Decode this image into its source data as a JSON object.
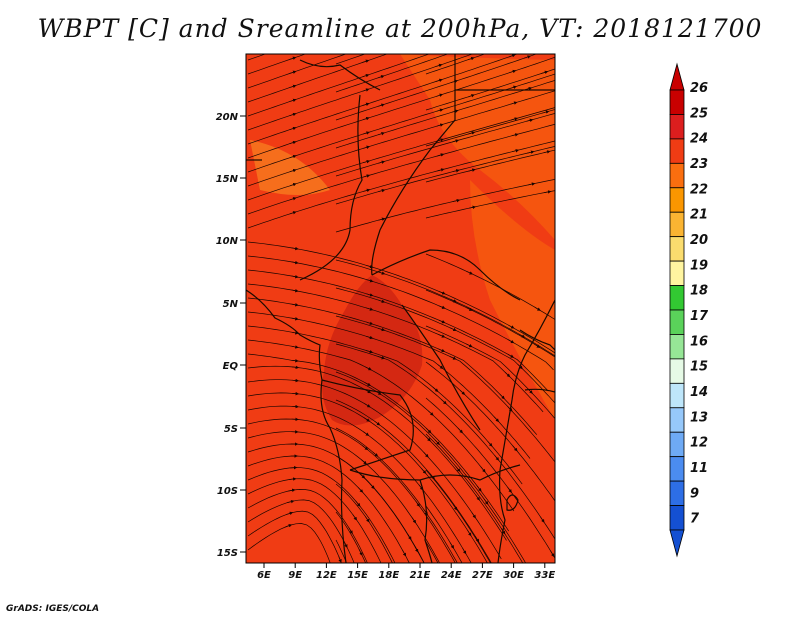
{
  "title": "WBPT [C] and Sreamline at 200hPa, VT: 2018121700",
  "credit": "GrADS: IGES/COLA",
  "map": {
    "lat_ticks": [
      "20N",
      "15N",
      "10N",
      "5N",
      "EQ",
      "5S",
      "10S",
      "15S"
    ],
    "lon_ticks": [
      "6E",
      "9E",
      "12E",
      "15E",
      "18E",
      "21E",
      "24E",
      "27E",
      "30E",
      "33E"
    ],
    "fill_colors": {
      "background": "#f03c14",
      "lighter": "#f5550f",
      "core": "#d42812",
      "patch": "#f77a1e"
    }
  },
  "colorbar": {
    "labels": [
      "26",
      "25",
      "24",
      "23",
      "22",
      "21",
      "20",
      "19",
      "18",
      "17",
      "16",
      "15",
      "14",
      "13",
      "12",
      "11",
      "9",
      "7"
    ],
    "colors": [
      "#c80000",
      "#dc1e1e",
      "#f03c14",
      "#fa6e0f",
      "#fa9600",
      "#fab432",
      "#fadc6e",
      "#fff5a0",
      "#32c832",
      "#5ad25a",
      "#96e696",
      "#e6fae6",
      "#bee6fa",
      "#96c8fa",
      "#6eaaf5",
      "#4b8cf0",
      "#2d6ee6",
      "#1450d2"
    ]
  }
}
